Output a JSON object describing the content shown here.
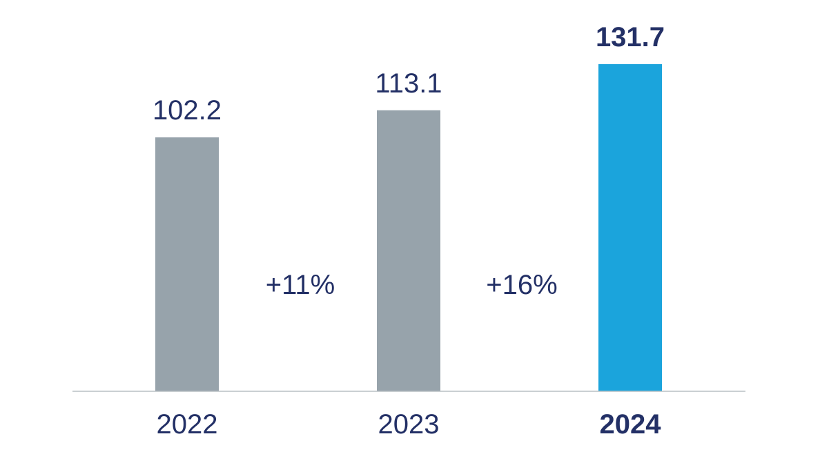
{
  "chart_data": {
    "type": "bar",
    "categories": [
      "2022",
      "2023",
      "2024"
    ],
    "values": [
      102.2,
      113.1,
      131.7
    ],
    "value_labels": [
      "102.2",
      "113.1",
      "131.7"
    ],
    "changes": [
      "+11%",
      "+16%"
    ],
    "highlight_index": 2,
    "colors": {
      "default_bar": "#97a3ab",
      "highlight_bar": "#1ba4dc",
      "text": "#233066",
      "baseline": "#b9bfc4"
    },
    "title": "",
    "xlabel": "",
    "ylabel": "",
    "grid": false,
    "legend": "none"
  }
}
